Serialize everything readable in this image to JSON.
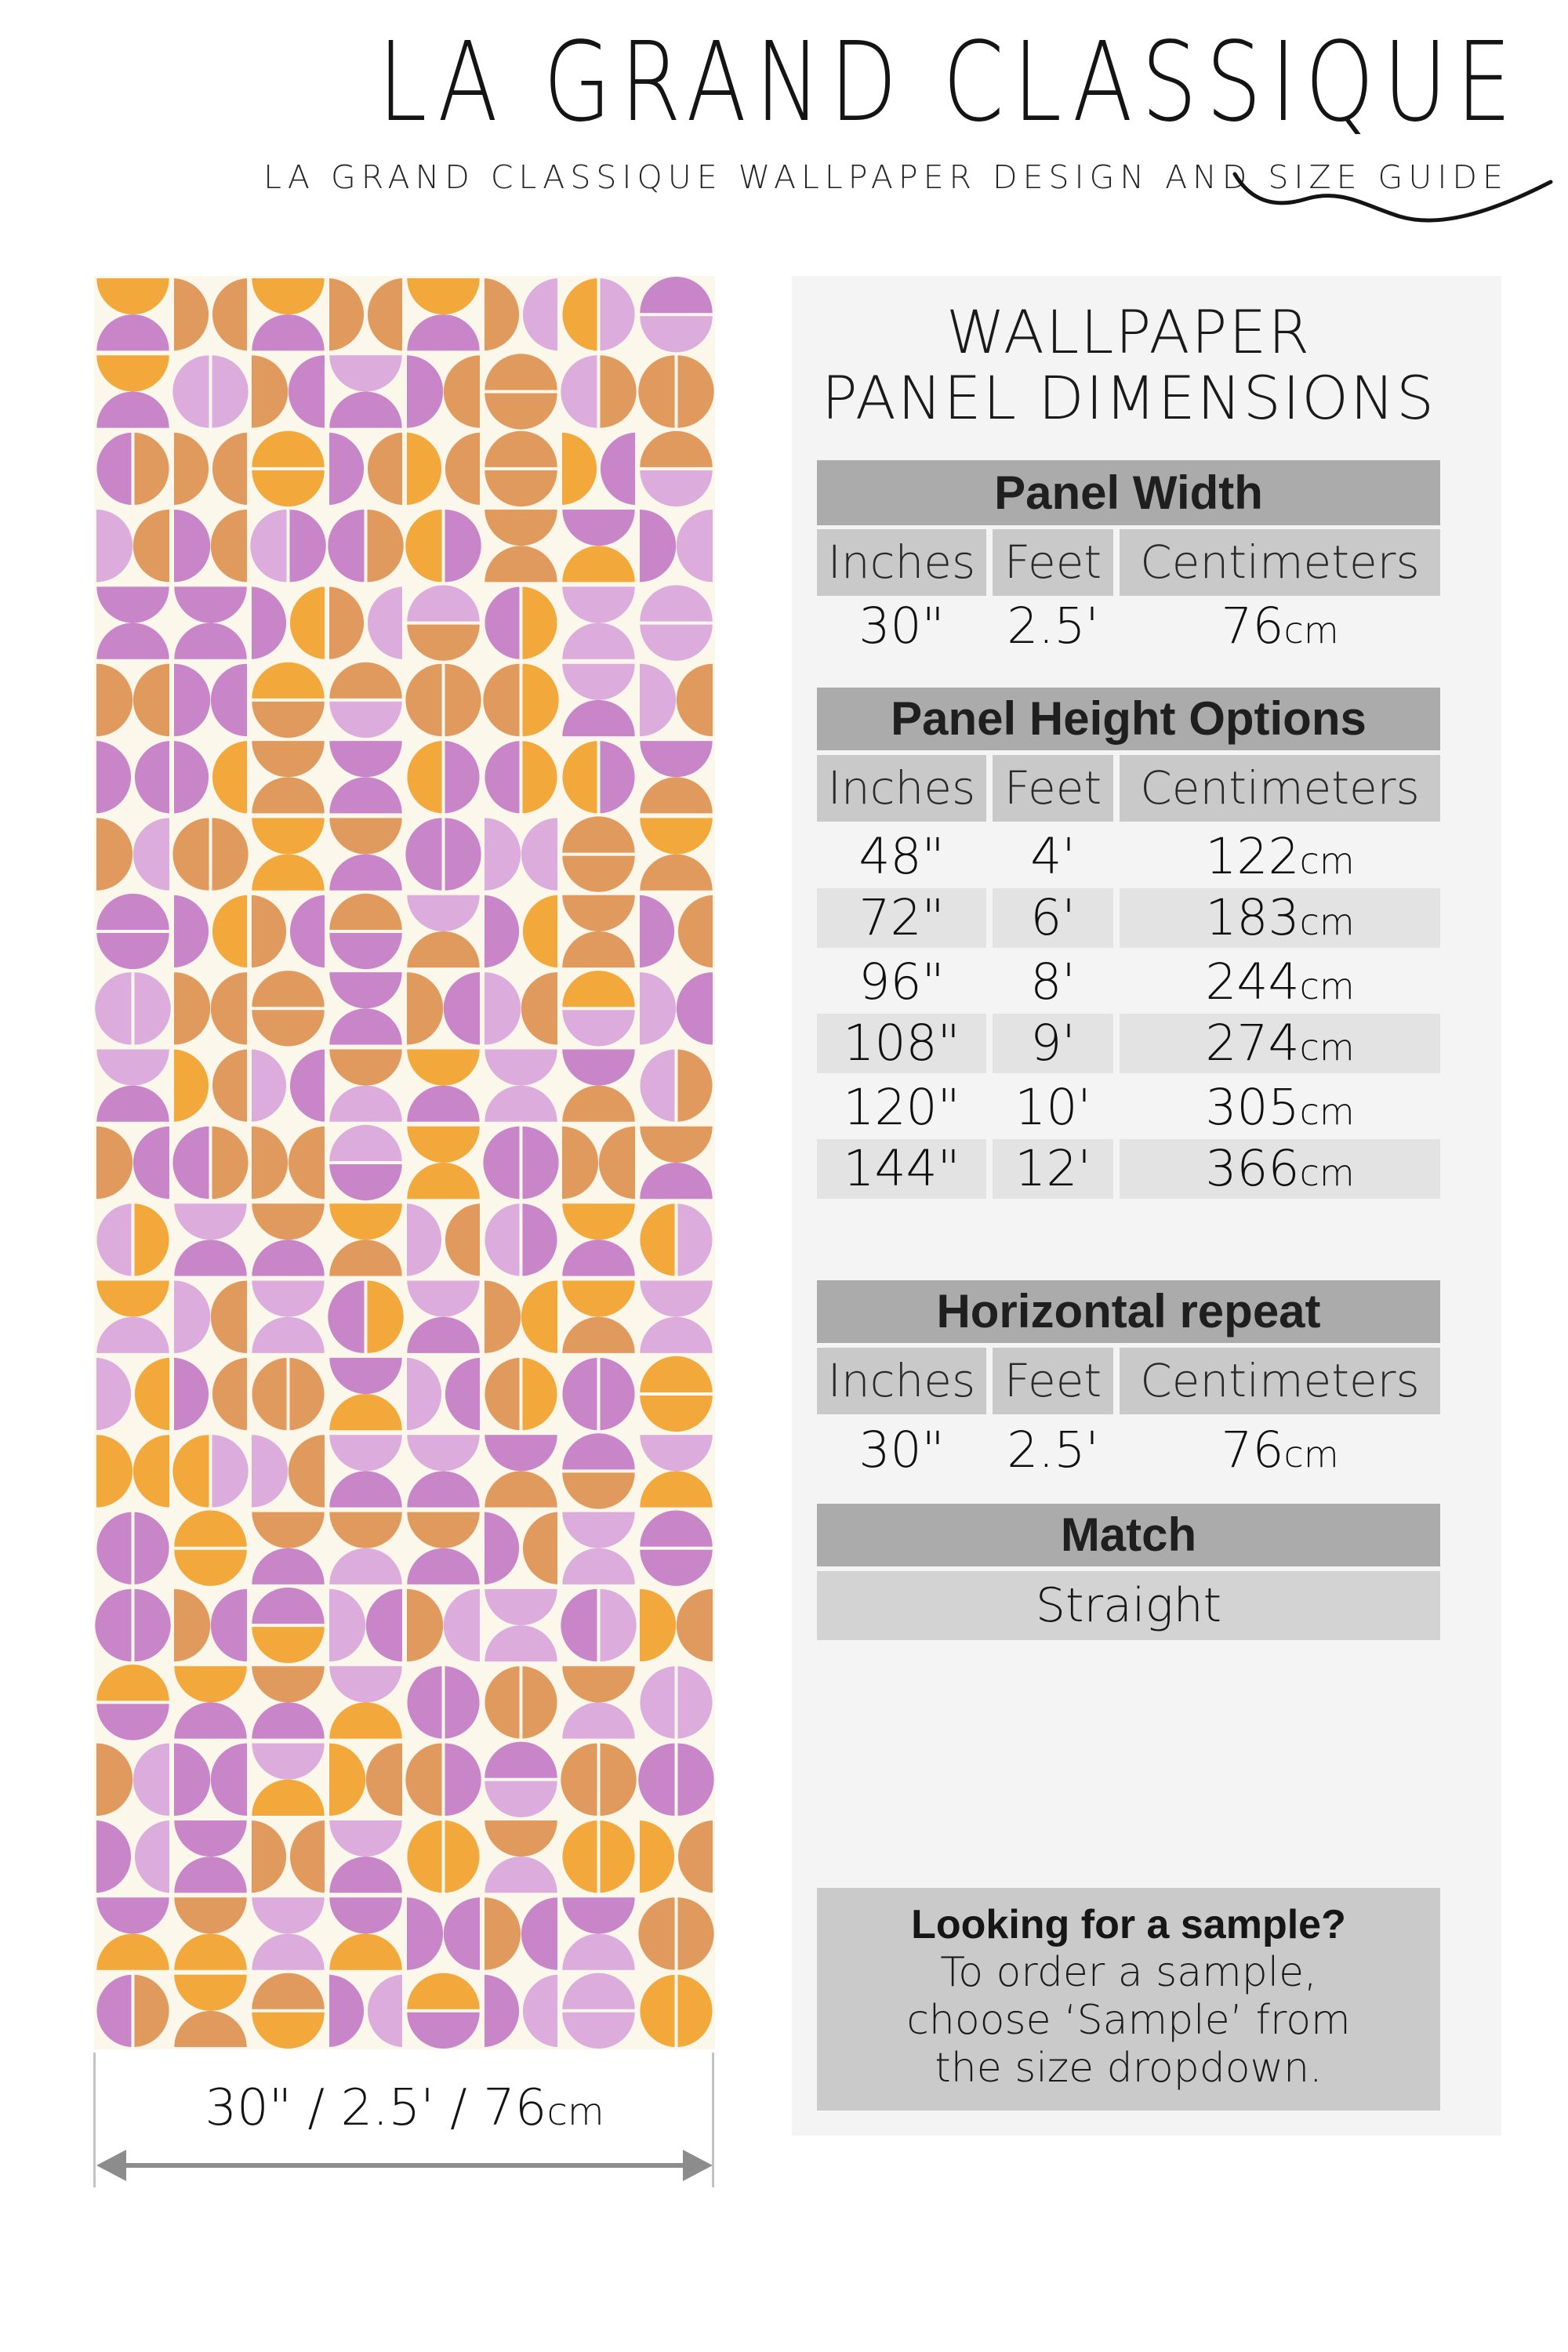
{
  "header": {
    "title": "LA GRAND CLASSIQUE",
    "subtitle": "LA GRAND CLASSIQUE WALLPAPER DESIGN AND SIZE GUIDE"
  },
  "panel": {
    "title_line1": "WALLPAPER",
    "title_line2": "PANEL DIMENSIONS",
    "width": {
      "title": "Panel Width",
      "headers": [
        "Inches",
        "Feet",
        "Centimeters"
      ],
      "row": {
        "inches": "30\"",
        "feet": "2.5'",
        "cm": "76",
        "cm_unit": "cm"
      }
    },
    "height": {
      "title": "Panel Height Options",
      "headers": [
        "Inches",
        "Feet",
        "Centimeters"
      ],
      "rows": [
        {
          "inches": "48\"",
          "feet": "4'",
          "cm": "122",
          "cm_unit": "cm"
        },
        {
          "inches": "72\"",
          "feet": "6'",
          "cm": "183",
          "cm_unit": "cm"
        },
        {
          "inches": "96\"",
          "feet": "8'",
          "cm": "244",
          "cm_unit": "cm"
        },
        {
          "inches": "108\"",
          "feet": "9'",
          "cm": "274",
          "cm_unit": "cm"
        },
        {
          "inches": "120\"",
          "feet": "10'",
          "cm": "305",
          "cm_unit": "cm"
        },
        {
          "inches": "144\"",
          "feet": "12'",
          "cm": "366",
          "cm_unit": "cm"
        }
      ]
    },
    "repeat": {
      "title": "Horizontal repeat",
      "headers": [
        "Inches",
        "Feet",
        "Centimeters"
      ],
      "row": {
        "inches": "30\"",
        "feet": "2.5'",
        "cm": "76",
        "cm_unit": "cm"
      }
    },
    "match": {
      "title": "Match",
      "value": "Straight"
    },
    "sample": {
      "title": "Looking for a sample?",
      "lines": [
        "To order a sample,",
        "choose ‘Sample’ from",
        "the size dropdown."
      ]
    }
  },
  "dimension_label": {
    "value": "30\" / 2.5' / 76",
    "unit": "cm"
  },
  "pattern": {
    "columns": 8,
    "rows": 23,
    "seed": 9,
    "background": "#FBF7EA",
    "colors": [
      "#C885C8",
      "#DBACDC",
      "#E19A5E",
      "#F2A83B"
    ],
    "color_names": [
      "orchid",
      "lavender",
      "tan",
      "marigold"
    ],
    "color_weights": [
      0.32,
      0.22,
      0.3,
      0.16
    ],
    "type_weights": {
      "vpair": 0.38,
      "circleV": 0.24,
      "hpair": 0.24,
      "circleH": 0.14
    }
  },
  "theme": {
    "panel_bg": "#f5f4f4",
    "band_gray": "#ababab",
    "header_cell_gray": "#c9c9c9",
    "stripe_gray": "#e3e3e3",
    "match_cell_gray": "#d3d3d3",
    "sample_box_gray": "#cacaca",
    "arrow_gray": "#8c8c8c",
    "text_dark": "#141414"
  }
}
